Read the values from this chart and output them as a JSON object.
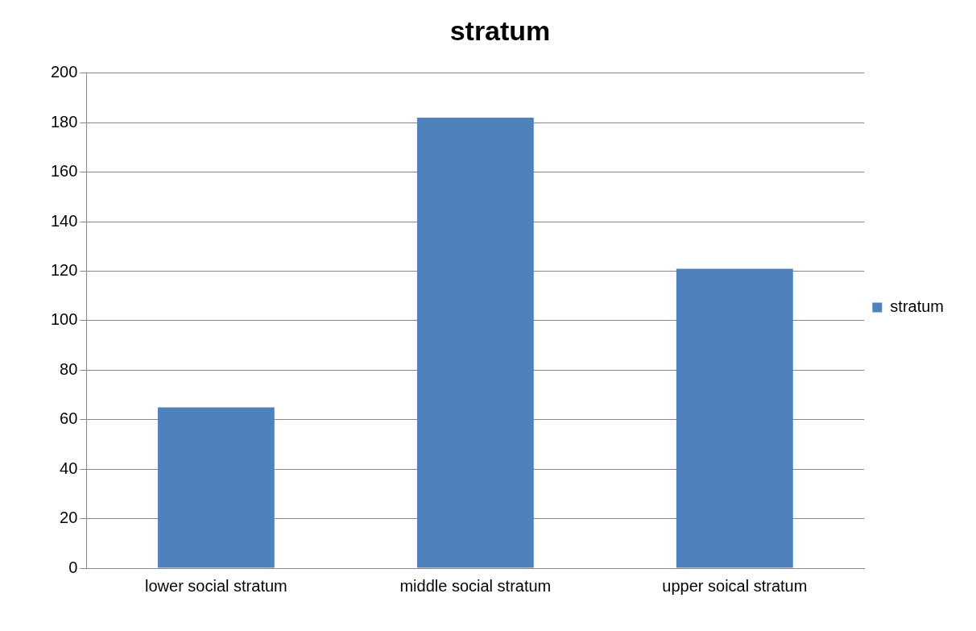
{
  "chart_data": {
    "type": "bar",
    "title": "stratum",
    "categories": [
      "lower social stratum",
      "middle social stratum",
      "upper soical stratum"
    ],
    "series": [
      {
        "name": "stratum",
        "color": "#4f81bd",
        "values": [
          65,
          182,
          121
        ]
      }
    ],
    "ylim": [
      0,
      200
    ],
    "yticks": [
      0,
      20,
      40,
      60,
      80,
      100,
      120,
      140,
      160,
      180,
      200
    ],
    "grid": "y",
    "legend": "right"
  }
}
